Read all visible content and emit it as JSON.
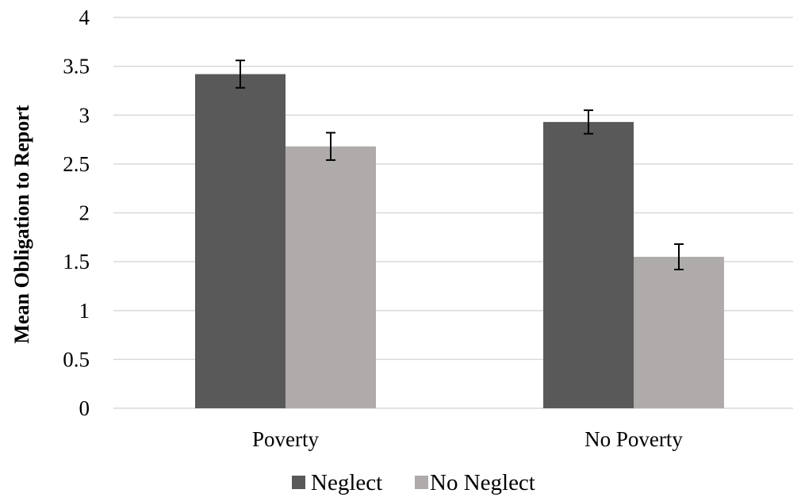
{
  "chart_data": {
    "type": "bar",
    "title": "",
    "xlabel": "",
    "ylabel": "Mean Obligation to Report",
    "ylim": [
      0,
      4
    ],
    "yticks": [
      0,
      0.5,
      1,
      1.5,
      2,
      2.5,
      3,
      3.5,
      4
    ],
    "ytick_labels": [
      "0",
      "0.5",
      "1",
      "1.5",
      "2",
      "2.5",
      "3",
      "3.5",
      "4"
    ],
    "grid": true,
    "legend": "bottom",
    "categories": [
      "Poverty",
      "No Poverty"
    ],
    "series": [
      {
        "name": "Neglect",
        "color": "#595959",
        "values": [
          3.42,
          2.93
        ],
        "error": [
          0.14,
          0.12
        ]
      },
      {
        "name": "No Neglect",
        "color": "#afabab",
        "values": [
          2.68,
          1.55
        ],
        "error": [
          0.14,
          0.13
        ]
      }
    ]
  }
}
